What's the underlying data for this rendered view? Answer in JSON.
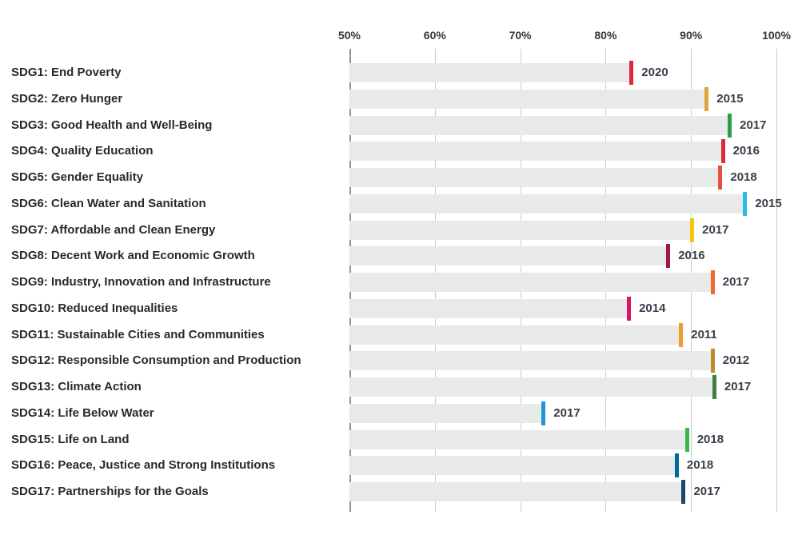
{
  "page": {
    "background": "#ffffff",
    "bar_track_color": "#e8eaea",
    "gridline_color": "#c9cdce",
    "axis_line_color": "#8f9596"
  },
  "chart_data": {
    "type": "bar",
    "orientation": "horizontal",
    "title": "",
    "xlabel": "",
    "ylabel": "",
    "legend": null,
    "grid": true,
    "axis": {
      "min": 50,
      "max": 100,
      "tick_labels": [
        "50%",
        "60%",
        "70%",
        "80%",
        "90%",
        "100%"
      ],
      "tick_values": [
        50,
        60,
        70,
        80,
        90,
        100
      ],
      "unit": "%"
    },
    "rows": [
      {
        "label": "SDG1: End Poverty",
        "value": 82.8,
        "year": "2020",
        "color": "#E5243B"
      },
      {
        "label": "SDG2: Zero Hunger",
        "value": 91.6,
        "year": "2015",
        "color": "#DDA63A"
      },
      {
        "label": "SDG3: Good Health and Well-Being",
        "value": 94.3,
        "year": "2017",
        "color": "#2E9D48"
      },
      {
        "label": "SDG4: Quality Education",
        "value": 93.5,
        "year": "2016",
        "color": "#DD2C39"
      },
      {
        "label": "SDG5: Gender Equality",
        "value": 93.2,
        "year": "2018",
        "color": "#E8503C"
      },
      {
        "label": "SDG6: Clean Water and Sanitation",
        "value": 96.1,
        "year": "2015",
        "color": "#26BDE2"
      },
      {
        "label": "SDG7: Affordable and Clean Energy",
        "value": 89.9,
        "year": "2017",
        "color": "#FCC30B"
      },
      {
        "label": "SDG8: Decent Work and Economic Growth",
        "value": 87.1,
        "year": "2016",
        "color": "#A21942"
      },
      {
        "label": "SDG9: Industry, Innovation and Infrastructure",
        "value": 92.3,
        "year": "2017",
        "color": "#F26A2E"
      },
      {
        "label": "SDG10: Reduced Inequalities",
        "value": 82.5,
        "year": "2014",
        "color": "#DD1367"
      },
      {
        "label": "SDG11: Sustainable Cities and Communities",
        "value": 88.6,
        "year": "2011",
        "color": "#F19D2C"
      },
      {
        "label": "SDG12: Responsible Consumption and Production",
        "value": 92.3,
        "year": "2012",
        "color": "#BF8B2E"
      },
      {
        "label": "SDG13: Climate Action",
        "value": 92.5,
        "year": "2017",
        "color": "#3F7E44"
      },
      {
        "label": "SDG14: Life Below Water",
        "value": 72.5,
        "year": "2017",
        "color": "#1E96D4"
      },
      {
        "label": "SDG15: Life on Land",
        "value": 89.3,
        "year": "2018",
        "color": "#3DB54A"
      },
      {
        "label": "SDG16: Peace, Justice and Strong Institutions",
        "value": 88.1,
        "year": "2018",
        "color": "#00689D"
      },
      {
        "label": "SDG17: Partnerships for the Goals",
        "value": 88.9,
        "year": "2017",
        "color": "#19486A"
      }
    ]
  }
}
